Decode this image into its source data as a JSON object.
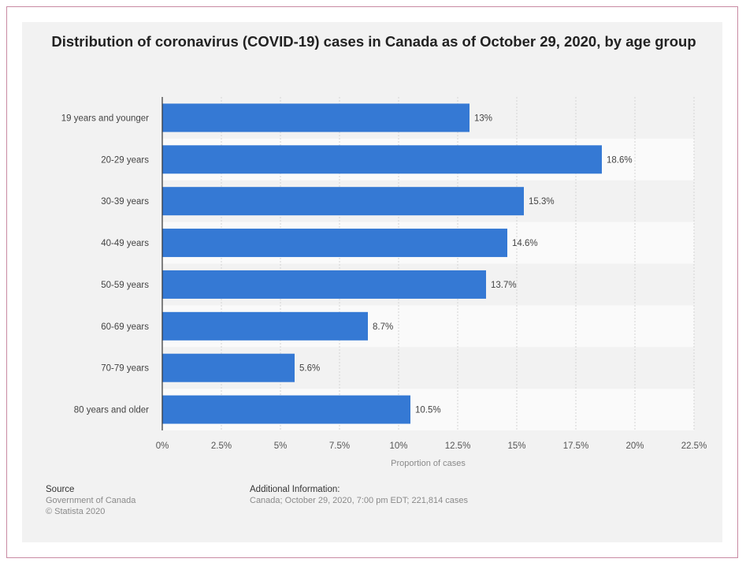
{
  "chart_data": {
    "type": "bar",
    "orientation": "horizontal",
    "title": "Distribution of coronavirus (COVID-19) cases in Canada as of October 29, 2020, by age group",
    "categories": [
      "19 years and younger",
      "20-29 years",
      "30-39 years",
      "40-49 years",
      "50-59 years",
      "60-69 years",
      "70-79 years",
      "80 years and older"
    ],
    "values": [
      13,
      18.6,
      15.3,
      14.6,
      13.7,
      8.7,
      5.6,
      10.5
    ],
    "value_labels": [
      "13%",
      "18.6%",
      "15.3%",
      "14.6%",
      "13.7%",
      "8.7%",
      "5.6%",
      "10.5%"
    ],
    "xlabel": "Proportion of cases",
    "ylabel": "",
    "xlim": [
      0,
      22.5
    ],
    "x_ticks": [
      0,
      2.5,
      5,
      7.5,
      10,
      12.5,
      15,
      17.5,
      20,
      22.5
    ],
    "x_tick_labels": [
      "0%",
      "2.5%",
      "5%",
      "7.5%",
      "10%",
      "12.5%",
      "15%",
      "17.5%",
      "20%",
      "22.5%"
    ],
    "grid": true,
    "bar_color": "#3579d4"
  },
  "footer": {
    "source_heading": "Source",
    "source_lines": [
      "Government of Canada",
      "© Statista 2020"
    ],
    "info_heading": "Additional Information:",
    "info_text": "Canada; October 29, 2020, 7:00 pm EDT; 221,814 cases"
  }
}
